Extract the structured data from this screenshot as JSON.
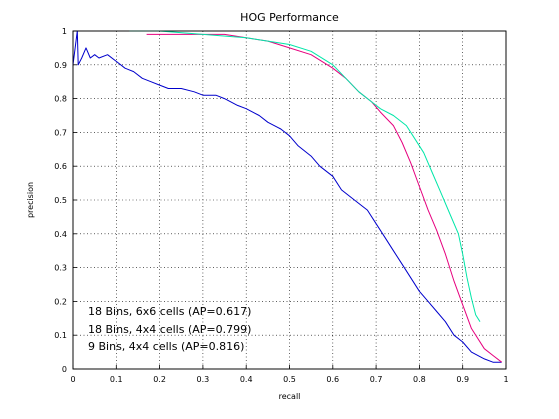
{
  "chart_data": {
    "type": "line",
    "title": "HOG Performance",
    "xlabel": "recall",
    "ylabel": "precision",
    "xlim": [
      0,
      1
    ],
    "ylim": [
      0,
      1
    ],
    "xticks": [
      0,
      0.1,
      0.2,
      0.3,
      0.4,
      0.5,
      0.6,
      0.7,
      0.8,
      0.9,
      1
    ],
    "yticks": [
      0,
      0.1,
      0.2,
      0.3,
      0.4,
      0.5,
      0.6,
      0.7,
      0.8,
      0.9,
      1
    ],
    "xtick_labels": [
      "0",
      "0.1",
      "0.2",
      "0.3",
      "0.4",
      "0.5",
      "0.6",
      "0.7",
      "0.8",
      "0.9",
      "1"
    ],
    "ytick_labels": [
      "0",
      "0.1",
      "0.2",
      "0.3",
      "0.4",
      "0.5",
      "0.6",
      "0.7",
      "0.8",
      "0.9",
      "1"
    ],
    "grid": true,
    "legend": "bottom-left",
    "series": [
      {
        "name": "18 Bins, 6x6 cells (AP=0.617)",
        "color": "#0000cc",
        "points": [
          [
            0.0,
            0.9
          ],
          [
            0.01,
            1.0
          ],
          [
            0.012,
            0.9
          ],
          [
            0.02,
            0.92
          ],
          [
            0.03,
            0.95
          ],
          [
            0.04,
            0.92
          ],
          [
            0.05,
            0.93
          ],
          [
            0.06,
            0.92
          ],
          [
            0.08,
            0.93
          ],
          [
            0.1,
            0.91
          ],
          [
            0.12,
            0.89
          ],
          [
            0.14,
            0.88
          ],
          [
            0.16,
            0.86
          ],
          [
            0.18,
            0.85
          ],
          [
            0.2,
            0.84
          ],
          [
            0.22,
            0.83
          ],
          [
            0.25,
            0.83
          ],
          [
            0.28,
            0.82
          ],
          [
            0.3,
            0.81
          ],
          [
            0.33,
            0.81
          ],
          [
            0.35,
            0.8
          ],
          [
            0.38,
            0.78
          ],
          [
            0.4,
            0.77
          ],
          [
            0.43,
            0.75
          ],
          [
            0.45,
            0.73
          ],
          [
            0.48,
            0.71
          ],
          [
            0.5,
            0.69
          ],
          [
            0.52,
            0.66
          ],
          [
            0.55,
            0.63
          ],
          [
            0.57,
            0.6
          ],
          [
            0.6,
            0.57
          ],
          [
            0.62,
            0.53
          ],
          [
            0.65,
            0.5
          ],
          [
            0.68,
            0.47
          ],
          [
            0.7,
            0.43
          ],
          [
            0.72,
            0.39
          ],
          [
            0.74,
            0.35
          ],
          [
            0.76,
            0.31
          ],
          [
            0.78,
            0.27
          ],
          [
            0.8,
            0.23
          ],
          [
            0.82,
            0.2
          ],
          [
            0.84,
            0.17
          ],
          [
            0.86,
            0.14
          ],
          [
            0.88,
            0.1
          ],
          [
            0.9,
            0.08
          ],
          [
            0.92,
            0.05
          ],
          [
            0.95,
            0.03
          ],
          [
            0.97,
            0.02
          ],
          [
            0.99,
            0.02
          ]
        ]
      },
      {
        "name": "18 Bins, 4x4 cells (AP=0.799)",
        "color": "#e6007e",
        "points": [
          [
            0.17,
            0.99
          ],
          [
            0.2,
            0.99
          ],
          [
            0.25,
            0.99
          ],
          [
            0.3,
            0.99
          ],
          [
            0.35,
            0.99
          ],
          [
            0.4,
            0.98
          ],
          [
            0.45,
            0.97
          ],
          [
            0.5,
            0.95
          ],
          [
            0.55,
            0.93
          ],
          [
            0.6,
            0.89
          ],
          [
            0.63,
            0.86
          ],
          [
            0.66,
            0.82
          ],
          [
            0.69,
            0.79
          ],
          [
            0.71,
            0.76
          ],
          [
            0.74,
            0.72
          ],
          [
            0.76,
            0.67
          ],
          [
            0.78,
            0.61
          ],
          [
            0.8,
            0.54
          ],
          [
            0.82,
            0.47
          ],
          [
            0.84,
            0.41
          ],
          [
            0.86,
            0.34
          ],
          [
            0.88,
            0.26
          ],
          [
            0.9,
            0.19
          ],
          [
            0.92,
            0.12
          ],
          [
            0.95,
            0.06
          ],
          [
            0.97,
            0.04
          ],
          [
            0.99,
            0.02
          ]
        ]
      },
      {
        "name": "9 Bins, 4x4 cells (AP=0.816)",
        "color": "#00e6a8",
        "points": [
          [
            0.13,
            1.0
          ],
          [
            0.2,
            1.0
          ],
          [
            0.3,
            0.99
          ],
          [
            0.4,
            0.98
          ],
          [
            0.45,
            0.97
          ],
          [
            0.5,
            0.96
          ],
          [
            0.55,
            0.94
          ],
          [
            0.6,
            0.9
          ],
          [
            0.63,
            0.86
          ],
          [
            0.66,
            0.82
          ],
          [
            0.69,
            0.79
          ],
          [
            0.71,
            0.77
          ],
          [
            0.74,
            0.75
          ],
          [
            0.77,
            0.72
          ],
          [
            0.79,
            0.68
          ],
          [
            0.81,
            0.64
          ],
          [
            0.83,
            0.58
          ],
          [
            0.85,
            0.52
          ],
          [
            0.87,
            0.46
          ],
          [
            0.89,
            0.4
          ],
          [
            0.9,
            0.34
          ],
          [
            0.91,
            0.27
          ],
          [
            0.92,
            0.21
          ],
          [
            0.93,
            0.16
          ],
          [
            0.94,
            0.14
          ]
        ]
      }
    ]
  }
}
